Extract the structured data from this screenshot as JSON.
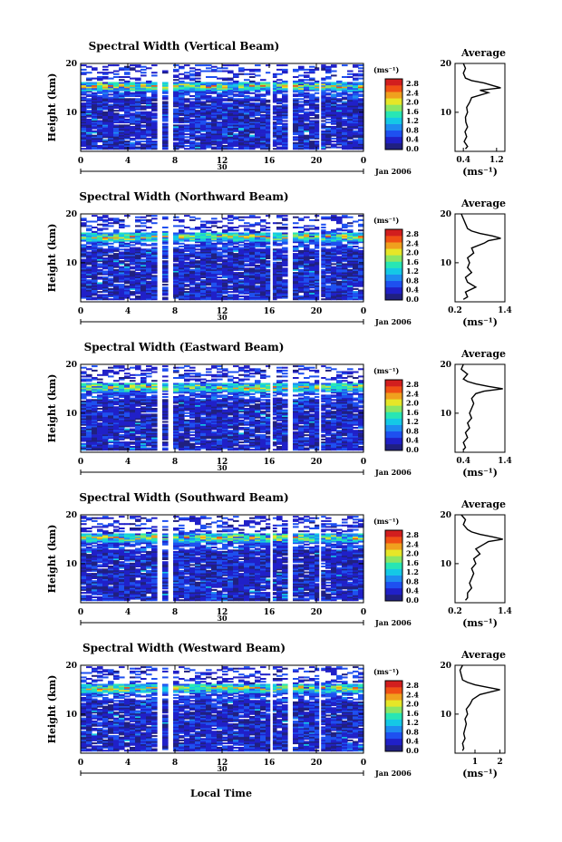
{
  "figure": {
    "date_label": "Jan 2006",
    "day_label": "30",
    "x_axis_label": "Local Time",
    "y_axis_label": "Height (km)",
    "colorbar_unit": "(ms⁻¹)",
    "average_title": "Average",
    "average_unit": "(ms⁻¹)"
  },
  "colorscale": {
    "ticks": [
      "2.8",
      "2.4",
      "2.0",
      "1.6",
      "1.2",
      "0.8",
      "0.4",
      "0.0"
    ],
    "colors": [
      "#202080",
      "#2020c8",
      "#1e50f0",
      "#1e8cf0",
      "#14c8e6",
      "#28e6b4",
      "#8ce664",
      "#e6e628",
      "#f0a01e",
      "#f05014",
      "#d21e1e"
    ]
  },
  "chart_data": [
    {
      "type": "heatmap",
      "title": "Spectral Width (Vertical Beam)",
      "xlabel": "Local Time",
      "ylabel": "Height (km)",
      "x_ticks": [
        "0",
        "4",
        "8",
        "12",
        "16",
        "20",
        "0"
      ],
      "xlim": [
        0,
        24
      ],
      "y_ticks": [
        "20",
        "10"
      ],
      "ylim": [
        2,
        20
      ],
      "colorbar": {
        "label": "(ms⁻¹)",
        "range": [
          0.0,
          2.8
        ]
      },
      "gaps_hours": [
        6.7,
        7.2,
        16.3,
        17.4
      ],
      "peak_layer_km": 15.2,
      "average_profile": {
        "title": "Average",
        "xlabel": "(ms⁻¹)",
        "x_ticks": [
          "0.4",
          "1.2"
        ],
        "xlim": [
          0.2,
          1.4
        ],
        "y_ticks": [
          "20",
          "10"
        ],
        "ylim": [
          2,
          20
        ],
        "height_km": [
          2.5,
          3,
          4,
          5,
          6,
          7,
          8,
          9,
          10,
          11,
          12,
          13,
          14,
          14.5,
          15,
          15.5,
          16,
          16.5,
          17,
          18,
          19,
          20
        ],
        "value": [
          0.45,
          0.5,
          0.42,
          0.48,
          0.44,
          0.5,
          0.46,
          0.45,
          0.5,
          0.48,
          0.55,
          0.6,
          1.0,
          0.8,
          1.3,
          1.1,
          0.9,
          0.6,
          0.45,
          0.4,
          0.45,
          0.4
        ]
      }
    },
    {
      "type": "heatmap",
      "title": "Spectral Width (Northward Beam)",
      "xlabel": "Local Time",
      "ylabel": "Height (km)",
      "x_ticks": [
        "0",
        "4",
        "8",
        "12",
        "16",
        "20",
        "0"
      ],
      "xlim": [
        0,
        24
      ],
      "y_ticks": [
        "20",
        "10"
      ],
      "ylim": [
        2,
        20
      ],
      "colorbar": {
        "label": "(ms⁻¹)",
        "range": [
          0.0,
          2.8
        ]
      },
      "gaps_hours": [
        6.7,
        7.2,
        16.3,
        17.4
      ],
      "peak_layer_km": 15.2,
      "average_profile": {
        "title": "Average",
        "xlabel": "(ms⁻¹)",
        "x_ticks": [
          "0.2",
          "1.4"
        ],
        "xlim": [
          0.2,
          1.4
        ],
        "y_ticks": [
          "20",
          "10"
        ],
        "ylim": [
          2,
          20
        ],
        "height_km": [
          2.5,
          3,
          4,
          5,
          6,
          7,
          8,
          9,
          10,
          11,
          12,
          13,
          14,
          14.5,
          15,
          15.5,
          16,
          16.5,
          17,
          18,
          19,
          20
        ],
        "value": [
          0.4,
          0.5,
          0.45,
          0.7,
          0.5,
          0.45,
          0.6,
          0.5,
          0.55,
          0.5,
          0.65,
          0.6,
          0.9,
          1.0,
          1.3,
          1.1,
          0.8,
          0.6,
          0.5,
          0.45,
          0.4,
          0.35
        ]
      }
    },
    {
      "type": "heatmap",
      "title": "Spectral Width (Eastward Beam)",
      "xlabel": "Local Time",
      "ylabel": "Height (km)",
      "x_ticks": [
        "0",
        "4",
        "8",
        "12",
        "16",
        "20",
        "0"
      ],
      "xlim": [
        0,
        24
      ],
      "y_ticks": [
        "20",
        "10"
      ],
      "ylim": [
        2,
        20
      ],
      "colorbar": {
        "label": "(ms⁻¹)",
        "range": [
          0.0,
          2.8
        ]
      },
      "gaps_hours": [
        6.7,
        7.2,
        16.3,
        17.4
      ],
      "peak_layer_km": 15.2,
      "average_profile": {
        "title": "Average",
        "xlabel": "(ms⁻¹)",
        "x_ticks": [
          "0.4",
          "1.4"
        ],
        "xlim": [
          0.2,
          1.4
        ],
        "y_ticks": [
          "20",
          "10"
        ],
        "ylim": [
          2,
          20
        ],
        "height_km": [
          2.5,
          3,
          4,
          5,
          6,
          7,
          8,
          9,
          10,
          11,
          12,
          13,
          14,
          14.5,
          15,
          15.5,
          16,
          16.5,
          17,
          18,
          19,
          20
        ],
        "value": [
          0.4,
          0.45,
          0.4,
          0.5,
          0.45,
          0.55,
          0.5,
          0.6,
          0.55,
          0.6,
          0.65,
          0.6,
          0.7,
          0.9,
          1.35,
          1.0,
          0.7,
          0.5,
          0.4,
          0.5,
          0.35,
          0.4
        ]
      }
    },
    {
      "type": "heatmap",
      "title": "Spectral Width (Southward Beam)",
      "xlabel": "Local Time",
      "ylabel": "Height (km)",
      "x_ticks": [
        "0",
        "4",
        "8",
        "12",
        "16",
        "20",
        "0"
      ],
      "xlim": [
        0,
        24
      ],
      "y_ticks": [
        "20",
        "10"
      ],
      "ylim": [
        2,
        20
      ],
      "colorbar": {
        "label": "(ms⁻¹)",
        "range": [
          0.0,
          2.8
        ]
      },
      "gaps_hours": [
        6.7,
        7.2,
        16.3,
        17.4
      ],
      "peak_layer_km": 15.2,
      "average_profile": {
        "title": "Average",
        "xlabel": "(ms⁻¹)",
        "x_ticks": [
          "0.2",
          "1.4"
        ],
        "xlim": [
          0.2,
          1.4
        ],
        "y_ticks": [
          "20",
          "10"
        ],
        "ylim": [
          2,
          20
        ],
        "height_km": [
          2.5,
          3,
          4,
          5,
          6,
          7,
          8,
          9,
          10,
          11,
          12,
          13,
          14,
          14.5,
          15,
          15.5,
          16,
          16.5,
          17,
          18,
          19,
          20
        ],
        "value": [
          0.45,
          0.5,
          0.5,
          0.6,
          0.55,
          0.6,
          0.65,
          0.6,
          0.7,
          0.65,
          0.8,
          0.7,
          0.9,
          1.0,
          1.35,
          1.1,
          0.8,
          0.6,
          0.5,
          0.4,
          0.45,
          0.35
        ]
      }
    },
    {
      "type": "heatmap",
      "title": "Spectral Width (Westward Beam)",
      "xlabel": "Local Time",
      "ylabel": "Height (km)",
      "x_ticks": [
        "0",
        "4",
        "8",
        "12",
        "16",
        "20",
        "0"
      ],
      "xlim": [
        0,
        24
      ],
      "y_ticks": [
        "20",
        "10"
      ],
      "ylim": [
        2,
        20
      ],
      "colorbar": {
        "label": "(ms⁻¹)",
        "range": [
          0.0,
          2.8
        ]
      },
      "gaps_hours": [
        6.7,
        7.2,
        16.3,
        17.4
      ],
      "peak_layer_km": 15.2,
      "average_profile": {
        "title": "Average",
        "xlabel": "(ms⁻¹)",
        "x_ticks": [
          "1",
          "2"
        ],
        "xlim": [
          0.2,
          2.2
        ],
        "y_ticks": [
          "20",
          "10"
        ],
        "ylim": [
          2,
          20
        ],
        "height_km": [
          2.5,
          3,
          4,
          5,
          6,
          7,
          8,
          9,
          10,
          11,
          12,
          13,
          14,
          14.5,
          15,
          15.5,
          16,
          16.5,
          17,
          18,
          19,
          20
        ],
        "value": [
          0.5,
          0.55,
          0.5,
          0.6,
          0.55,
          0.6,
          0.65,
          0.6,
          0.7,
          0.65,
          0.8,
          0.9,
          1.2,
          1.6,
          2.0,
          1.5,
          1.0,
          0.7,
          0.5,
          0.45,
          0.4,
          0.5
        ]
      }
    }
  ]
}
